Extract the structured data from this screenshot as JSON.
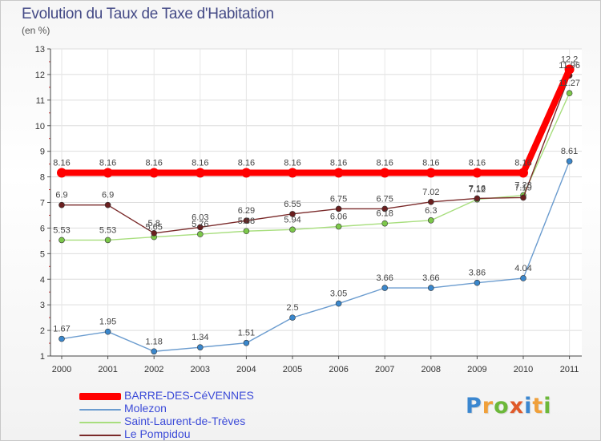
{
  "title": "Evolution du Taux de Taxe d'Habitation",
  "subtitle": "(en %)",
  "brand": {
    "letters": [
      "P",
      "r",
      "o",
      "x",
      "i",
      "t",
      "i"
    ],
    "colors": [
      "#3b87d0",
      "#f0a03a",
      "#6cb83a",
      "#e05a2a",
      "#3b87d0",
      "#f0a03a",
      "#6cb83a"
    ]
  },
  "chart_data": {
    "type": "line",
    "x": [
      "2000",
      "2001",
      "2002",
      "2003",
      "2004",
      "2005",
      "2006",
      "2007",
      "2008",
      "2009",
      "2010",
      "2011"
    ],
    "ylim": [
      1,
      13
    ],
    "yticks": [
      1,
      2,
      3,
      4,
      5,
      6,
      7,
      8,
      9,
      10,
      11,
      12,
      13
    ],
    "grid": true,
    "legend_position": "bottom-left",
    "series": [
      {
        "name": "BARRE-DES-CéVENNES",
        "color": "#ff0000",
        "width": 8,
        "values": [
          8.16,
          8.16,
          8.16,
          8.16,
          8.16,
          8.16,
          8.16,
          8.16,
          8.16,
          8.16,
          8.16,
          12.2
        ],
        "labels": [
          "8.16",
          "8.16",
          "8.16",
          "8.16",
          "8.16",
          "8.16",
          "8.16",
          "8.16",
          "8.16",
          "8.16",
          "8.16",
          "12.2"
        ]
      },
      {
        "name": "Molezon",
        "color": "#6b9ccf",
        "marker": "#3a87cc",
        "width": 1.4,
        "values": [
          1.67,
          1.95,
          1.18,
          1.34,
          1.51,
          2.5,
          3.05,
          3.66,
          3.66,
          3.86,
          4.04,
          8.61
        ],
        "labels": [
          "1.67",
          "1.95",
          "1.18",
          "1.34",
          "1.51",
          "2.5",
          "3.05",
          "3.66",
          "3.66",
          "3.86",
          "4.04",
          "8.61"
        ]
      },
      {
        "name": "Saint-Laurent-de-Trèves",
        "color": "#a8de7e",
        "marker": "#7cc84a",
        "width": 1.4,
        "values": [
          5.53,
          5.53,
          5.65,
          5.76,
          5.88,
          5.94,
          6.06,
          6.18,
          6.3,
          7.12,
          7.28,
          11.27
        ],
        "labels": [
          "5.53",
          "5.53",
          "5.65",
          "5.76",
          "5.88",
          "5.94",
          "6.06",
          "6.18",
          "6.3",
          "7.12",
          "7.28",
          "11.27"
        ]
      },
      {
        "name": "Le Pompidou",
        "color": "#7a2a2a",
        "marker": "#6a1f1f",
        "width": 1.4,
        "values": [
          6.9,
          6.9,
          5.8,
          6.03,
          6.29,
          6.55,
          6.75,
          6.75,
          7.02,
          7.16,
          7.19,
          11.96
        ],
        "labels": [
          "6.9",
          "6.9",
          "5.8",
          "6.03",
          "6.29",
          "6.55",
          "6.75",
          "6.75",
          "7.02",
          "7.16",
          "7.19",
          "11.96"
        ]
      }
    ]
  }
}
